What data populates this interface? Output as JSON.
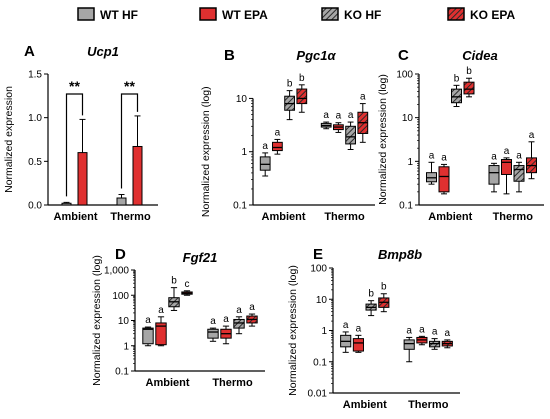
{
  "legend": {
    "placement": "top",
    "entries": [
      {
        "name": "WT HF",
        "fill": "#a6a6a6",
        "pattern": "solid"
      },
      {
        "name": "WT EPA",
        "fill": "#e03030",
        "pattern": "solid"
      },
      {
        "name": "KO HF",
        "fill": "#a6a6a6",
        "pattern": "hatched"
      },
      {
        "name": "KO EPA",
        "fill": "#e03030",
        "pattern": "hatched"
      }
    ]
  },
  "colors": {
    "gray": "#a6a6a6",
    "red": "#e03030",
    "stroke": "#000000"
  },
  "chart_data": [
    {
      "panel": "A",
      "title": "Ucp1",
      "type": "bar",
      "ylabel": "Normalized expression",
      "scale": "linear",
      "ylim": [
        0,
        1.5
      ],
      "yticks": [
        0.0,
        0.5,
        1.0,
        1.5
      ],
      "yticklabels": [
        "0.0",
        "0.5",
        "1.0",
        "1.5"
      ],
      "categories": [
        "Ambient",
        "Thermo"
      ],
      "series": [
        {
          "name": "WT HF",
          "values": [
            0.02,
            0.08
          ],
          "errors": [
            0.01,
            0.04
          ]
        },
        {
          "name": "WT EPA",
          "values": [
            0.6,
            0.67
          ],
          "errors": [
            0.38,
            0.35
          ]
        }
      ],
      "significance": [
        {
          "category": "Ambient",
          "label": "**"
        },
        {
          "category": "Thermo",
          "label": "**"
        }
      ]
    },
    {
      "panel": "B",
      "title": "Pgc1α",
      "type": "box",
      "ylabel": "Normalized expression (log)",
      "scale": "log",
      "ylim": [
        0.1,
        30
      ],
      "yticks": [
        0.1,
        1,
        10
      ],
      "yticklabels": [
        "0.1",
        "1",
        "10"
      ],
      "categories": [
        "Ambient",
        "Thermo"
      ],
      "groups": [
        {
          "category": "Ambient",
          "boxes": [
            {
              "series": "WT HF",
              "min": 0.35,
              "q1": 0.45,
              "median": 0.58,
              "q3": 0.8,
              "max": 0.95,
              "letter": "a"
            },
            {
              "series": "WT EPA",
              "min": 0.9,
              "q1": 1.05,
              "median": 1.2,
              "q3": 1.5,
              "max": 1.7,
              "letter": "a"
            },
            {
              "series": "KO HF",
              "min": 4.0,
              "q1": 6.0,
              "median": 8.0,
              "q3": 11.0,
              "max": 14.0,
              "letter": "b"
            },
            {
              "series": "KO EPA",
              "min": 5.5,
              "q1": 8.0,
              "median": 10.0,
              "q3": 15.0,
              "max": 18.0,
              "letter": "b"
            }
          ]
        },
        {
          "category": "Thermo",
          "boxes": [
            {
              "series": "WT HF",
              "min": 2.7,
              "q1": 2.9,
              "median": 3.1,
              "q3": 3.4,
              "max": 3.6,
              "letter": "a"
            },
            {
              "series": "WT EPA",
              "min": 2.3,
              "q1": 2.6,
              "median": 2.9,
              "q3": 3.2,
              "max": 3.5,
              "letter": "a"
            },
            {
              "series": "KO HF",
              "min": 1.1,
              "q1": 1.4,
              "median": 1.9,
              "q3": 3.0,
              "max": 3.6,
              "letter": "a"
            },
            {
              "series": "KO EPA",
              "min": 1.5,
              "q1": 2.2,
              "median": 3.5,
              "q3": 5.5,
              "max": 8.0,
              "letter": "a"
            }
          ]
        }
      ]
    },
    {
      "panel": "C",
      "title": "Cidea",
      "type": "box",
      "ylabel": "Normalized expression (log)",
      "scale": "log",
      "ylim": [
        0.1,
        100
      ],
      "yticks": [
        0.1,
        1,
        10,
        100
      ],
      "yticklabels": [
        "0.1",
        "1",
        "10",
        "100"
      ],
      "categories": [
        "Ambient",
        "Thermo"
      ],
      "groups": [
        {
          "category": "Ambient",
          "boxes": [
            {
              "series": "WT HF",
              "min": 0.3,
              "q1": 0.34,
              "median": 0.42,
              "q3": 0.55,
              "max": 0.95,
              "letter": "a"
            },
            {
              "series": "WT EPA",
              "min": 0.18,
              "q1": 0.2,
              "median": 0.45,
              "q3": 0.75,
              "max": 0.85,
              "letter": "a"
            },
            {
              "series": "KO HF",
              "min": 18.0,
              "q1": 22.0,
              "median": 30.0,
              "q3": 45.0,
              "max": 55.0,
              "letter": "b"
            },
            {
              "series": "KO EPA",
              "min": 30.0,
              "q1": 35.0,
              "median": 45.0,
              "q3": 65.0,
              "max": 80.0,
              "letter": "b"
            }
          ]
        },
        {
          "category": "Thermo",
          "boxes": [
            {
              "series": "WT HF",
              "min": 0.2,
              "q1": 0.3,
              "median": 0.55,
              "q3": 0.8,
              "max": 0.9,
              "letter": "a"
            },
            {
              "series": "WT EPA",
              "min": 0.18,
              "q1": 0.5,
              "median": 0.95,
              "q3": 1.1,
              "max": 1.2,
              "letter": "a"
            },
            {
              "series": "KO HF",
              "min": 0.2,
              "q1": 0.35,
              "median": 0.65,
              "q3": 0.8,
              "max": 0.95,
              "letter": "a"
            },
            {
              "series": "KO EPA",
              "min": 0.4,
              "q1": 0.55,
              "median": 0.8,
              "q3": 1.2,
              "max": 2.8,
              "letter": "a"
            }
          ]
        }
      ]
    },
    {
      "panel": "D",
      "title": "Fgf21",
      "type": "box",
      "ylabel": "Normalized expression (log)",
      "scale": "log",
      "ylim": [
        0.1,
        1000
      ],
      "yticks": [
        0.1,
        1,
        10,
        100,
        1000
      ],
      "yticklabels": [
        "0.1",
        "1",
        "10",
        "100",
        "1,000"
      ],
      "categories": [
        "Ambient",
        "Thermo"
      ],
      "groups": [
        {
          "category": "Ambient",
          "boxes": [
            {
              "series": "WT HF",
              "min": 1.0,
              "q1": 1.2,
              "median": 4.5,
              "q3": 5.0,
              "max": 5.5,
              "letter": "a"
            },
            {
              "series": "WT EPA",
              "min": 1.0,
              "q1": 1.1,
              "median": 6.0,
              "q3": 8.0,
              "max": 14.0,
              "letter": "a"
            },
            {
              "series": "KO HF",
              "min": 25.0,
              "q1": 35.0,
              "median": 55.0,
              "q3": 80.0,
              "max": 200.0,
              "letter": "b"
            },
            {
              "series": "KO EPA",
              "min": 100.0,
              "q1": 110.0,
              "median": 120.0,
              "q3": 135.0,
              "max": 150.0,
              "letter": "c"
            }
          ]
        },
        {
          "category": "Thermo",
          "boxes": [
            {
              "series": "WT HF",
              "min": 1.5,
              "q1": 2.0,
              "median": 3.5,
              "q3": 4.5,
              "max": 5.0,
              "letter": "a"
            },
            {
              "series": "WT EPA",
              "min": 1.2,
              "q1": 2.0,
              "median": 3.0,
              "q3": 4.5,
              "max": 6.0,
              "letter": "a"
            },
            {
              "series": "KO HF",
              "min": 3.0,
              "q1": 5.0,
              "median": 8.0,
              "q3": 11.0,
              "max": 14.0,
              "letter": "a"
            },
            {
              "series": "KO EPA",
              "min": 6.0,
              "q1": 8.0,
              "median": 11.0,
              "q3": 15.0,
              "max": 18.0,
              "letter": "a"
            }
          ]
        }
      ]
    },
    {
      "panel": "E",
      "title": "Bmp8b",
      "type": "box",
      "ylabel": "Normalized expression (log)",
      "scale": "log",
      "ylim": [
        0.01,
        100
      ],
      "yticks": [
        0.01,
        0.1,
        1,
        10,
        100
      ],
      "yticklabels": [
        "0.01",
        "0.1",
        "1",
        "10",
        "100"
      ],
      "categories": [
        "Ambient",
        "Thermo"
      ],
      "groups": [
        {
          "category": "Ambient",
          "boxes": [
            {
              "series": "WT HF",
              "min": 0.2,
              "q1": 0.3,
              "median": 0.45,
              "q3": 0.7,
              "max": 0.9,
              "letter": "a"
            },
            {
              "series": "WT EPA",
              "min": 0.2,
              "q1": 0.22,
              "median": 0.4,
              "q3": 0.55,
              "max": 0.7,
              "letter": "a"
            },
            {
              "series": "KO HF",
              "min": 3.0,
              "q1": 4.5,
              "median": 5.5,
              "q3": 7.0,
              "max": 9.0,
              "letter": "b"
            },
            {
              "series": "KO EPA",
              "min": 4.0,
              "q1": 5.5,
              "median": 8.0,
              "q3": 11.0,
              "max": 15.0,
              "letter": "b"
            }
          ]
        },
        {
          "category": "Thermo",
          "boxes": [
            {
              "series": "WT HF",
              "min": 0.1,
              "q1": 0.25,
              "median": 0.38,
              "q3": 0.5,
              "max": 0.6,
              "letter": "a"
            },
            {
              "series": "WT EPA",
              "min": 0.35,
              "q1": 0.4,
              "median": 0.5,
              "q3": 0.6,
              "max": 0.65,
              "letter": "a"
            },
            {
              "series": "KO HF",
              "min": 0.25,
              "q1": 0.3,
              "median": 0.38,
              "q3": 0.45,
              "max": 0.55,
              "letter": "a"
            },
            {
              "series": "KO EPA",
              "min": 0.28,
              "q1": 0.32,
              "median": 0.38,
              "q3": 0.45,
              "max": 0.5,
              "letter": "a"
            }
          ]
        }
      ]
    }
  ]
}
